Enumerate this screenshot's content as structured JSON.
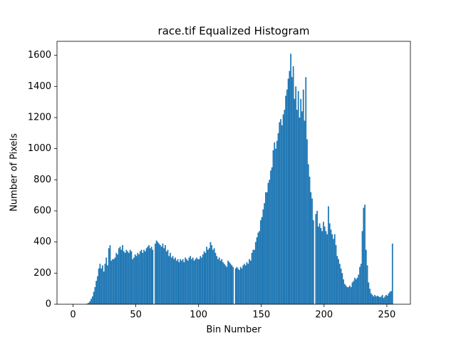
{
  "chart_data": {
    "type": "histogram",
    "title": "race.tif Equalized Histogram",
    "x_label": "Bin Number",
    "y_label": "Number of Pixels",
    "color": "#1f77b4",
    "bins": [
      0,
      1,
      2,
      3,
      4,
      5,
      6,
      7,
      8,
      9,
      10,
      11,
      12,
      13,
      14,
      15,
      16,
      17,
      18,
      19,
      20,
      21,
      22,
      23,
      24,
      25,
      26,
      27,
      28,
      29,
      30,
      31,
      32,
      33,
      34,
      35,
      36,
      37,
      38,
      39,
      40,
      41,
      42,
      43,
      44,
      45,
      46,
      47,
      48,
      49,
      50,
      51,
      52,
      53,
      54,
      55,
      56,
      57,
      58,
      59,
      60,
      61,
      62,
      63,
      64,
      65,
      66,
      67,
      68,
      69,
      70,
      71,
      72,
      73,
      74,
      75,
      76,
      77,
      78,
      79,
      80,
      81,
      82,
      83,
      84,
      85,
      86,
      87,
      88,
      89,
      90,
      91,
      92,
      93,
      94,
      95,
      96,
      97,
      98,
      99,
      100,
      101,
      102,
      103,
      104,
      105,
      106,
      107,
      108,
      109,
      110,
      111,
      112,
      113,
      114,
      115,
      116,
      117,
      118,
      119,
      120,
      121,
      122,
      123,
      124,
      125,
      126,
      127,
      128,
      129,
      130,
      131,
      132,
      133,
      134,
      135,
      136,
      137,
      138,
      139,
      140,
      141,
      142,
      143,
      144,
      145,
      146,
      147,
      148,
      149,
      150,
      151,
      152,
      153,
      154,
      155,
      156,
      157,
      158,
      159,
      160,
      161,
      162,
      163,
      164,
      165,
      166,
      167,
      168,
      169,
      170,
      171,
      172,
      173,
      174,
      175,
      176,
      177,
      178,
      179,
      180,
      181,
      182,
      183,
      184,
      185,
      186,
      187,
      188,
      189,
      190,
      191,
      192,
      193,
      194,
      195,
      196,
      197,
      198,
      199,
      200,
      201,
      202,
      203,
      204,
      205,
      206,
      207,
      208,
      209,
      210,
      211,
      212,
      213,
      214,
      215,
      216,
      217,
      218,
      219,
      220,
      221,
      222,
      223,
      224,
      225,
      226,
      227,
      228,
      229,
      230,
      231,
      232,
      233,
      234,
      235,
      236,
      237,
      238,
      239,
      240,
      241,
      242,
      243,
      244,
      245,
      246,
      247,
      248,
      249,
      250,
      251,
      252,
      253,
      254,
      255,
      256
    ],
    "values": [
      0,
      0,
      0,
      0,
      0,
      0,
      0,
      0,
      0,
      0,
      2,
      5,
      10,
      20,
      35,
      50,
      80,
      110,
      150,
      180,
      230,
      260,
      230,
      250,
      210,
      260,
      300,
      250,
      360,
      380,
      280,
      290,
      290,
      300,
      330,
      320,
      360,
      370,
      350,
      380,
      340,
      330,
      350,
      340,
      330,
      350,
      340,
      290,
      300,
      320,
      310,
      330,
      320,
      340,
      350,
      330,
      350,
      340,
      360,
      370,
      380,
      360,
      370,
      350,
      0,
      390,
      410,
      400,
      390,
      380,
      370,
      390,
      360,
      380,
      340,
      350,
      310,
      330,
      300,
      310,
      290,
      300,
      280,
      290,
      270,
      290,
      280,
      290,
      270,
      300,
      290,
      280,
      300,
      310,
      290,
      300,
      280,
      290,
      300,
      290,
      290,
      310,
      300,
      320,
      340,
      330,
      370,
      350,
      360,
      400,
      380,
      350,
      360,
      330,
      310,
      290,
      300,
      280,
      290,
      270,
      260,
      250,
      240,
      280,
      270,
      260,
      250,
      240,
      0,
      230,
      240,
      230,
      220,
      240,
      230,
      250,
      260,
      250,
      270,
      260,
      290,
      280,
      330,
      350,
      350,
      400,
      430,
      460,
      470,
      540,
      560,
      610,
      650,
      720,
      720,
      780,
      800,
      860,
      880,
      990,
      1040,
      1000,
      1050,
      1100,
      1170,
      1190,
      1150,
      1220,
      1250,
      1340,
      1380,
      1450,
      1500,
      1610,
      1460,
      1530,
      1320,
      1400,
      1250,
      1370,
      1200,
      1320,
      1240,
      1380,
      1180,
      1460,
      1060,
      900,
      820,
      720,
      680,
      540,
      0,
      580,
      600,
      500,
      520,
      490,
      470,
      530,
      500,
      470,
      450,
      630,
      520,
      480,
      450,
      420,
      450,
      380,
      310,
      290,
      260,
      230,
      200,
      160,
      130,
      120,
      110,
      110,
      120,
      110,
      140,
      150,
      170,
      160,
      170,
      190,
      240,
      260,
      470,
      620,
      640,
      350,
      250,
      140,
      100,
      70,
      60,
      50,
      60,
      50,
      55,
      50,
      45,
      50,
      60,
      40,
      50,
      60,
      55,
      70,
      80,
      85,
      390,
      0
    ],
    "xlim": [
      -12.8,
      268.8
    ],
    "xticks": [
      0,
      50,
      100,
      150,
      200,
      250
    ],
    "ylim": [
      0,
      1690
    ],
    "yticks": [
      0,
      200,
      400,
      600,
      800,
      1000,
      1200,
      1400,
      1600
    ]
  }
}
